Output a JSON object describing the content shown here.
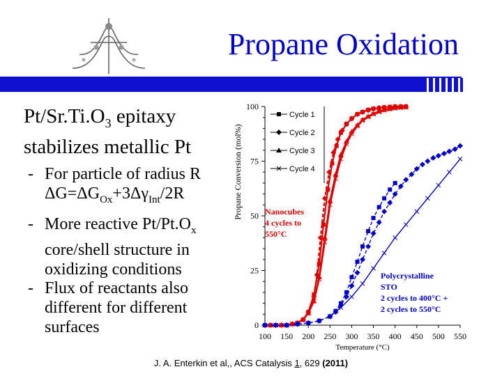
{
  "slide": {
    "title": "Propane Oxidation",
    "heading_main": "Pt/Sr.Ti.O",
    "heading_sub": "3",
    "heading_rest": " epitaxy",
    "heading_line2": "stabilizes metallic Pt",
    "bullets": [
      {
        "dash": "-",
        "text": "For particle of radius R"
      },
      {
        "text": "ΔG=ΔG"
      },
      {
        "dash": "-",
        "text": "More reactive Pt/Pt.O"
      },
      {
        "dash": "-",
        "text": "Flux of reactants also different for different surfaces"
      }
    ],
    "eq_sub1": "Ox",
    "eq_mid": "+3Δγ",
    "eq_sub2": "Int",
    "eq_end": "/2R",
    "b2_sub": "x",
    "b2_rest": "core/shell structure in oxidizing conditions",
    "citation_pre": "J. A. Enterkin et al,, ACS Catalysis ",
    "citation_vol": "1",
    "citation_mid": ", 629 ",
    "citation_year": "(2011)"
  },
  "colors": {
    "title": "#0000cc",
    "bar": "#1010d0",
    "nanocube": "#e00000",
    "poly": "#0000cc"
  },
  "chart_data": {
    "type": "line",
    "xlabel": "Temperature (°C)",
    "ylabel": "Propane Conversion (mol%)",
    "xlim": [
      100,
      550
    ],
    "ylim": [
      0,
      100
    ],
    "xticks": [
      100,
      150,
      200,
      250,
      300,
      350,
      400,
      450,
      500,
      550
    ],
    "yticks": [
      0,
      25,
      50,
      75,
      100
    ],
    "legend_position": "top-right",
    "series": [
      {
        "name": "Cycle 1",
        "group": "nanocubes",
        "marker": "square",
        "dash": "solid",
        "x": [
          100,
          113,
          125,
          138,
          150,
          163,
          175,
          188,
          200,
          213,
          225,
          235,
          245,
          255,
          265,
          275,
          288,
          300,
          313,
          325,
          338,
          350,
          363,
          375,
          388,
          400,
          413,
          425
        ],
        "y": [
          0,
          0,
          0,
          0,
          0,
          0.5,
          1,
          2.5,
          6,
          14,
          28,
          46,
          62,
          74,
          82,
          88,
          92,
          94.5,
          96.5,
          97.5,
          98.5,
          99,
          99.3,
          99.6,
          99.8,
          100,
          100,
          100
        ]
      },
      {
        "name": "Cycle 2",
        "group": "nanocubes",
        "marker": "diamond",
        "dash": "dashed",
        "x": [
          100,
          113,
          125,
          138,
          150,
          163,
          175,
          188,
          200,
          213,
          220,
          228,
          238,
          248,
          258,
          268,
          278,
          288,
          300,
          313,
          325,
          338,
          350,
          363,
          375,
          388,
          400,
          413,
          425
        ],
        "y": [
          0,
          0,
          0,
          0,
          0,
          0.5,
          1,
          2.5,
          6,
          13,
          23,
          40,
          58,
          70,
          79,
          85,
          89,
          92,
          94.5,
          96.5,
          97.5,
          98.3,
          99,
          99.4,
          99.6,
          99.8,
          100,
          100,
          100
        ]
      },
      {
        "name": "Cycle 3",
        "group": "nanocubes",
        "marker": "triangle",
        "dash": "solid",
        "x": [
          100,
          113,
          125,
          138,
          150,
          163,
          175,
          188,
          200,
          213,
          225,
          238,
          250,
          263,
          275,
          288,
          300,
          313,
          325,
          338,
          350,
          363,
          375,
          388,
          400,
          413,
          425
        ],
        "y": [
          0,
          0,
          0,
          0,
          0,
          0.5,
          1,
          2.5,
          5.5,
          11,
          22,
          40,
          57,
          69,
          78,
          84,
          88.5,
          91.5,
          94,
          95.5,
          96.8,
          97.8,
          98.5,
          99,
          99.4,
          99.6,
          99.8
        ]
      },
      {
        "name": "Cycle 4",
        "group": "nanocubes",
        "marker": "cross",
        "dash": "solid",
        "x": [
          100,
          113,
          125,
          138,
          150,
          163,
          175,
          188,
          200,
          213,
          225,
          238,
          250,
          263,
          275,
          288,
          300,
          313,
          325,
          338,
          350,
          363,
          375,
          388,
          400,
          413,
          425
        ],
        "y": [
          0,
          0,
          0,
          0,
          0,
          0.5,
          1,
          2.5,
          5.5,
          11,
          21,
          38,
          55,
          67,
          76,
          83,
          87.5,
          91,
          93.5,
          95.2,
          96.5,
          97.5,
          98.3,
          98.8,
          99.2,
          99.5,
          99.7
        ]
      },
      {
        "name": "Polycrystalline 2 cycles to 400°C",
        "group": "poly",
        "marker": "square",
        "dash": "dashed",
        "x": [
          100,
          125,
          150,
          175,
          200,
          225,
          250,
          263,
          275,
          288,
          300,
          313,
          325,
          338,
          350,
          363,
          375,
          388,
          400
        ],
        "y": [
          0,
          0,
          0,
          0.5,
          1,
          2,
          4,
          6.5,
          10,
          15,
          22,
          29,
          36,
          43,
          49,
          54,
          58,
          62,
          65
        ]
      },
      {
        "name": "Polycrystalline 2 cycles to 550°C",
        "group": "poly",
        "marker": "diamond",
        "dash": "dashed",
        "x": [
          100,
          125,
          150,
          175,
          200,
          225,
          250,
          263,
          275,
          288,
          300,
          313,
          325,
          338,
          350,
          363,
          375,
          388,
          400,
          413,
          425,
          438,
          450,
          463,
          475,
          488,
          500,
          513,
          525,
          538,
          550
        ],
        "y": [
          0,
          0,
          0,
          0.5,
          1,
          2,
          4,
          6,
          9,
          13,
          18,
          24,
          30,
          36,
          42,
          47,
          52,
          56,
          60,
          63.5,
          66.5,
          69,
          71.5,
          73.5,
          75,
          76.5,
          77.5,
          78.5,
          79.5,
          80.5,
          82
        ]
      },
      {
        "name": "Polycrystalline 2 cycles to 550°C (line)",
        "group": "poly",
        "marker": "cross",
        "dash": "solid",
        "x": [
          250,
          275,
          300,
          325,
          350,
          375,
          400,
          425,
          450,
          475,
          500,
          525,
          550
        ],
        "y": [
          4,
          8,
          13,
          19,
          26,
          33,
          40,
          46,
          52,
          58,
          64,
          70,
          76
        ]
      }
    ],
    "annotations": [
      {
        "lines": [
          "Nanocubes",
          "4 cycles to",
          "550°C"
        ],
        "color": "#e00000"
      },
      {
        "lines": [
          "Polycrystalline",
          "STO",
          "2 cycles to 400°C +",
          "2 cycles to 550°C"
        ],
        "color": "#0000cc"
      }
    ]
  }
}
